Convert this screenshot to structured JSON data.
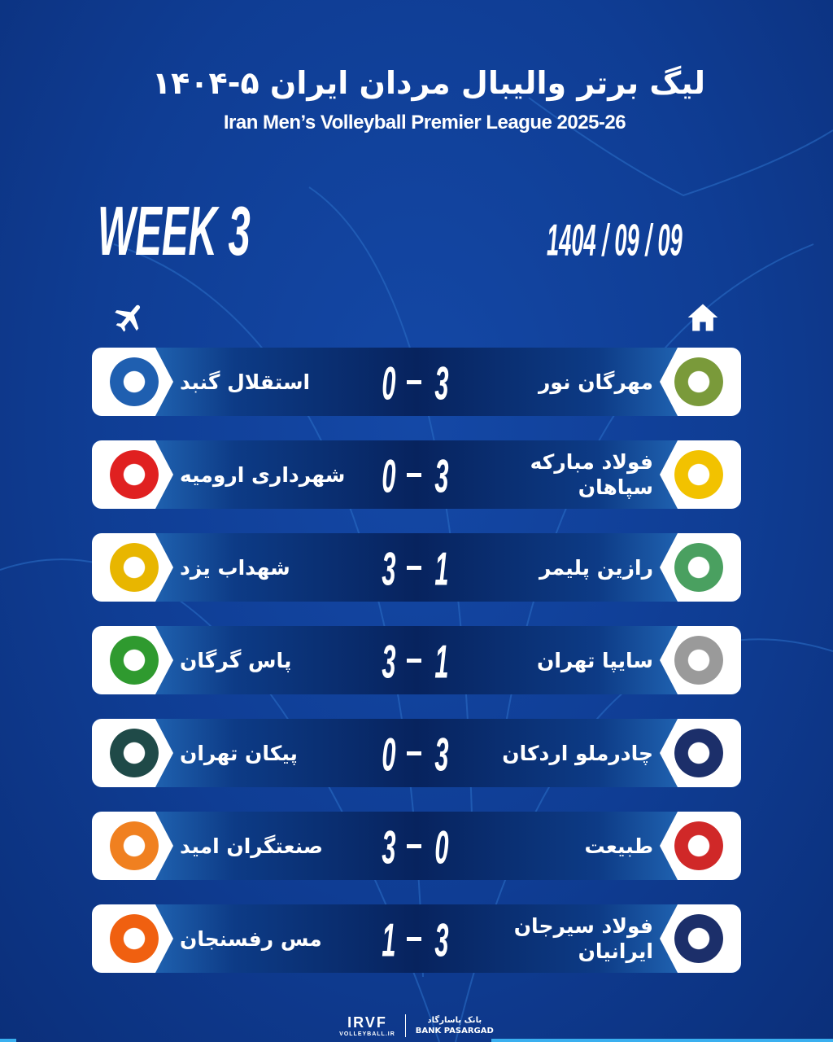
{
  "header": {
    "title_fa": "لیگ برتر والیبال مردان ایران ۵-۱۴۰۴",
    "title_en": "Iran Men’s Volleyball Premier League 2025-26",
    "week": "WEEK 3",
    "date": "1404 / 09 / 09"
  },
  "icons": {
    "away": "airplane-icon",
    "home": "home-icon"
  },
  "matches": [
    {
      "home": "مهرگان نور",
      "away": "استقلال گنبد",
      "score_left": "0",
      "score_right": "3",
      "home_color": "#7a9a3a",
      "away_color": "#1f5fb0"
    },
    {
      "home": "فولاد مبارکه سپاهان",
      "away": "شهرداری ارومیه",
      "score_left": "0",
      "score_right": "3",
      "home_color": "#f2c200",
      "away_color": "#e02020"
    },
    {
      "home": "رازین پلیمر",
      "away": "شهداب یزد",
      "score_left": "3",
      "score_right": "1",
      "home_color": "#4aa060",
      "away_color": "#e8b600"
    },
    {
      "home": "سایپا تهران",
      "away": "پاس گرگان",
      "score_left": "3",
      "score_right": "1",
      "home_color": "#9a9a9a",
      "away_color": "#2f9a2f"
    },
    {
      "home": "چادرملو اردکان",
      "away": "پیکان تهران",
      "score_left": "0",
      "score_right": "3",
      "home_color": "#1c2f6a",
      "away_color": "#1f4a48"
    },
    {
      "home": "طبیعت",
      "away": "صنعتگران امید",
      "score_left": "3",
      "score_right": "0",
      "home_color": "#d02828",
      "away_color": "#f08020"
    },
    {
      "home": "فولاد سیرجان ایرانیان",
      "away": "مس رفسنجان",
      "score_left": "1",
      "score_right": "3",
      "home_color": "#1c2f6a",
      "away_color": "#f06010"
    }
  ],
  "footer": {
    "federation": "IRVF",
    "federation_sub": "VOLLEYBALL.IR",
    "sponsor_fa": "بانک پاسارگاد",
    "sponsor_en": "BANK PASARGAD"
  }
}
